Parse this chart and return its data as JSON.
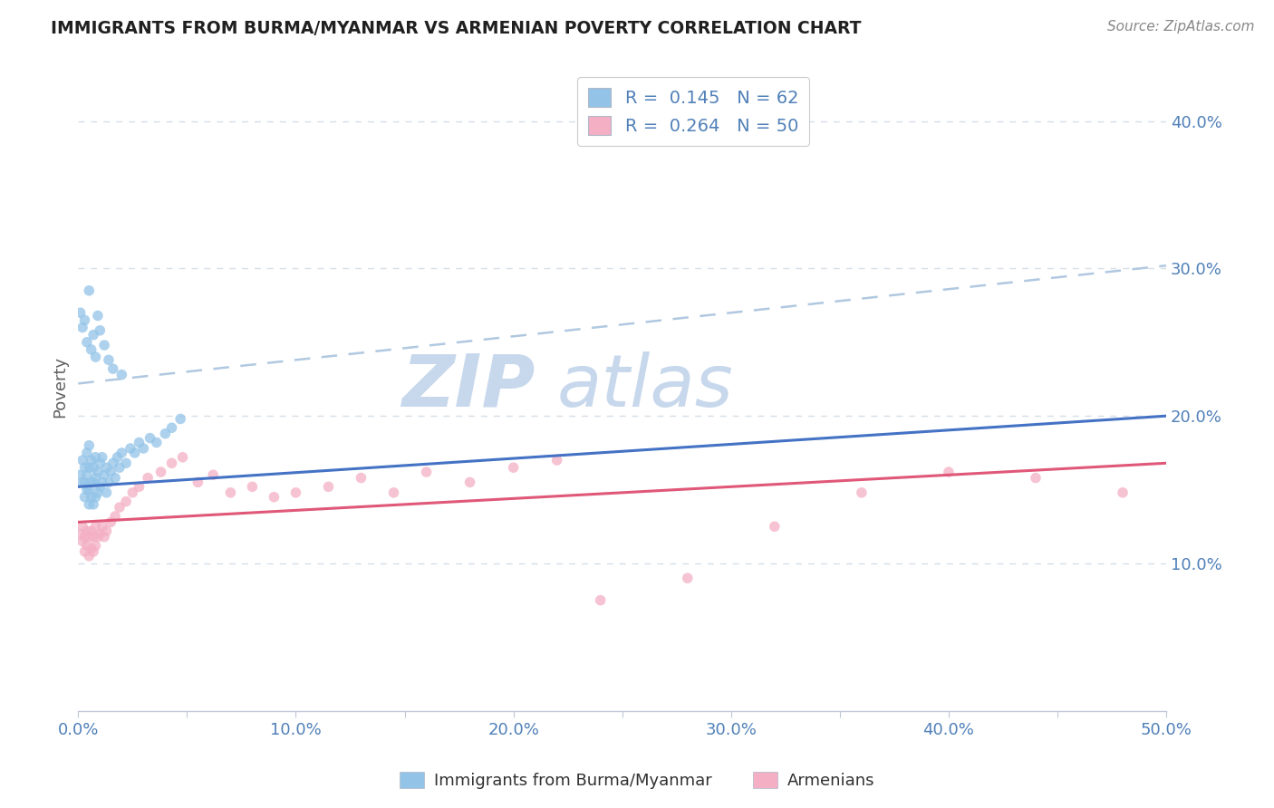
{
  "title": "IMMIGRANTS FROM BURMA/MYANMAR VS ARMENIAN POVERTY CORRELATION CHART",
  "source": "Source: ZipAtlas.com",
  "ylabel": "Poverty",
  "xlim": [
    0.0,
    0.5
  ],
  "ylim": [
    0.0,
    0.44
  ],
  "xticks": [
    0.0,
    0.05,
    0.1,
    0.15,
    0.2,
    0.25,
    0.3,
    0.35,
    0.4,
    0.45,
    0.5
  ],
  "yticks": [
    0.1,
    0.2,
    0.3,
    0.4
  ],
  "xticklabels": [
    "0.0%",
    "",
    "10.0%",
    "",
    "20.0%",
    "",
    "30.0%",
    "",
    "40.0%",
    "",
    "50.0%"
  ],
  "yticklabels": [
    "10.0%",
    "20.0%",
    "30.0%",
    "40.0%"
  ],
  "blue_R": "0.145",
  "blue_N": "62",
  "pink_R": "0.264",
  "pink_N": "50",
  "blue_color": "#93c4e8",
  "pink_color": "#f4afc5",
  "blue_line_color": "#4472c4",
  "pink_line_color": "#e05878",
  "dashed_line_color": "#b0c8e0",
  "watermark_zip_color": "#c8d8ec",
  "watermark_atlas_color": "#c8d8ec",
  "blue_scatter_x": [
    0.001,
    0.002,
    0.002,
    0.003,
    0.003,
    0.003,
    0.004,
    0.004,
    0.004,
    0.005,
    0.005,
    0.005,
    0.005,
    0.006,
    0.006,
    0.006,
    0.007,
    0.007,
    0.007,
    0.008,
    0.008,
    0.008,
    0.009,
    0.009,
    0.01,
    0.01,
    0.011,
    0.011,
    0.012,
    0.013,
    0.013,
    0.014,
    0.015,
    0.016,
    0.017,
    0.018,
    0.019,
    0.02,
    0.022,
    0.024,
    0.026,
    0.028,
    0.03,
    0.033,
    0.036,
    0.04,
    0.043,
    0.047,
    0.001,
    0.002,
    0.003,
    0.004,
    0.005,
    0.006,
    0.007,
    0.008,
    0.009,
    0.01,
    0.012,
    0.014,
    0.016,
    0.02
  ],
  "blue_scatter_y": [
    0.16,
    0.155,
    0.17,
    0.145,
    0.155,
    0.165,
    0.15,
    0.16,
    0.175,
    0.14,
    0.15,
    0.165,
    0.18,
    0.145,
    0.155,
    0.17,
    0.14,
    0.155,
    0.165,
    0.145,
    0.158,
    0.172,
    0.148,
    0.162,
    0.152,
    0.168,
    0.155,
    0.172,
    0.16,
    0.148,
    0.165,
    0.155,
    0.162,
    0.168,
    0.158,
    0.172,
    0.165,
    0.175,
    0.168,
    0.178,
    0.175,
    0.182,
    0.178,
    0.185,
    0.182,
    0.188,
    0.192,
    0.198,
    0.27,
    0.26,
    0.265,
    0.25,
    0.285,
    0.245,
    0.255,
    0.24,
    0.268,
    0.258,
    0.248,
    0.238,
    0.232,
    0.228
  ],
  "pink_scatter_x": [
    0.001,
    0.002,
    0.002,
    0.003,
    0.003,
    0.004,
    0.004,
    0.005,
    0.005,
    0.006,
    0.006,
    0.007,
    0.007,
    0.008,
    0.008,
    0.009,
    0.01,
    0.011,
    0.012,
    0.013,
    0.015,
    0.017,
    0.019,
    0.022,
    0.025,
    0.028,
    0.032,
    0.038,
    0.043,
    0.048,
    0.055,
    0.062,
    0.07,
    0.08,
    0.09,
    0.1,
    0.115,
    0.13,
    0.145,
    0.16,
    0.18,
    0.2,
    0.22,
    0.24,
    0.28,
    0.32,
    0.36,
    0.4,
    0.44,
    0.48
  ],
  "pink_scatter_y": [
    0.12,
    0.115,
    0.125,
    0.108,
    0.118,
    0.112,
    0.122,
    0.105,
    0.118,
    0.11,
    0.122,
    0.108,
    0.118,
    0.112,
    0.125,
    0.118,
    0.12,
    0.125,
    0.118,
    0.122,
    0.128,
    0.132,
    0.138,
    0.142,
    0.148,
    0.152,
    0.158,
    0.162,
    0.168,
    0.172,
    0.155,
    0.16,
    0.148,
    0.152,
    0.145,
    0.148,
    0.152,
    0.158,
    0.148,
    0.162,
    0.155,
    0.165,
    0.17,
    0.075,
    0.09,
    0.125,
    0.148,
    0.162,
    0.158,
    0.148
  ],
  "blue_regression": [
    0.0,
    0.5,
    0.152,
    0.2
  ],
  "pink_regression": [
    0.0,
    0.5,
    0.128,
    0.168
  ],
  "dashed_regression": [
    0.0,
    0.5,
    0.222,
    0.302
  ],
  "background_color": "#ffffff",
  "grid_color": "#d5dfe8",
  "axis_color": "#c0c8d8",
  "tick_color": "#5080b8",
  "title_color": "#202020"
}
